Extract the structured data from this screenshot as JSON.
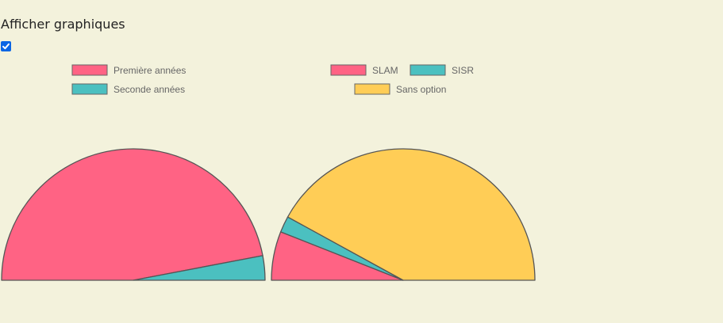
{
  "toggle": {
    "label": "Afficher graphiques",
    "checked": true
  },
  "chart_data": [
    {
      "type": "pie",
      "variant": "semi-circle",
      "categories": [
        "Première années",
        "Seconde années"
      ],
      "values": [
        94,
        6
      ],
      "colors": [
        "#ff6384",
        "#4bc0c0"
      ],
      "legend": [
        "Première années",
        "Seconde années"
      ],
      "legend_position": "top",
      "title": ""
    },
    {
      "type": "pie",
      "variant": "semi-circle",
      "categories": [
        "SLAM",
        "SISR",
        "Sans option"
      ],
      "values": [
        12,
        4,
        84
      ],
      "colors": [
        "#ff6384",
        "#4bc0c0",
        "#ffcd56"
      ],
      "legend": [
        "SLAM",
        "SISR",
        "Sans option"
      ],
      "legend_position": "top",
      "title": ""
    }
  ]
}
